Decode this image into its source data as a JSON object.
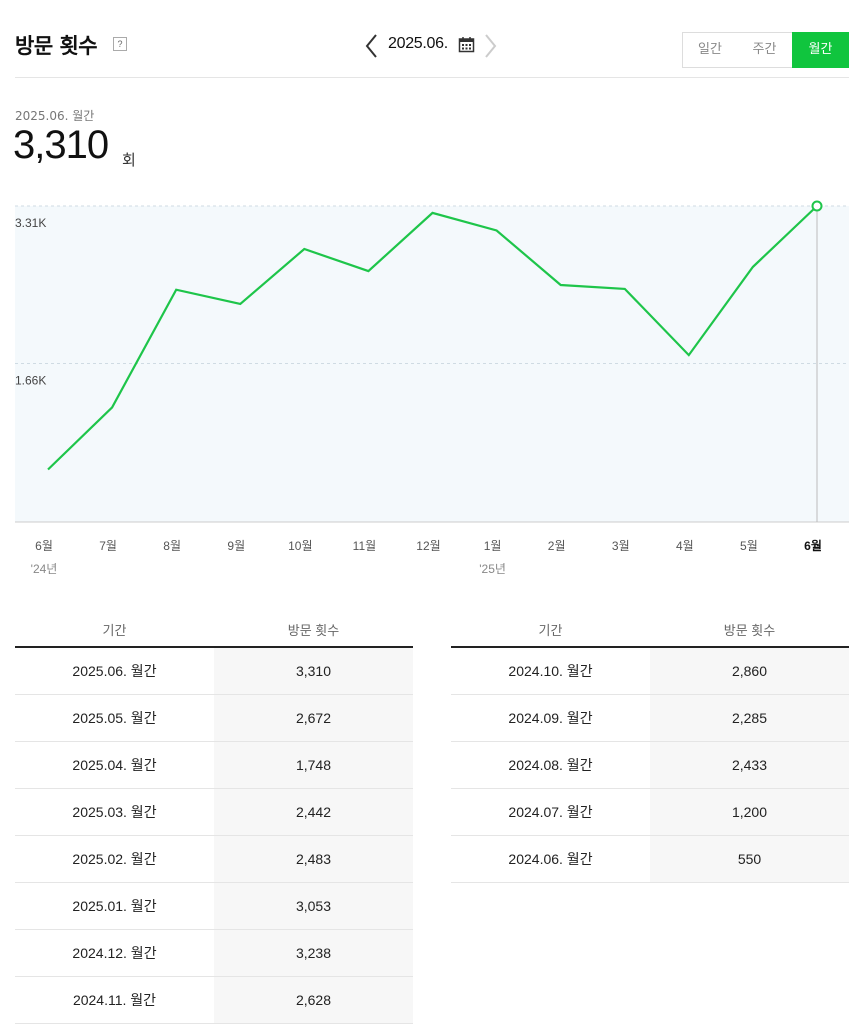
{
  "header": {
    "title": "방문 횟수",
    "help": "?",
    "period": "2025.06.",
    "tabs": {
      "daily": "일간",
      "weekly": "주간",
      "monthly": "월간"
    }
  },
  "summary": {
    "label": "2025.06. 월간",
    "value": "3,310",
    "unit": "회"
  },
  "colors": {
    "accent": "#10c53e",
    "line": "#1ec54a",
    "plot_bg": "#f4f9fc"
  },
  "chart_data": {
    "type": "line",
    "categories": [
      "6월",
      "7월",
      "8월",
      "9월",
      "10월",
      "11월",
      "12월",
      "1월",
      "2월",
      "3월",
      "4월",
      "5월",
      "6월"
    ],
    "year_labels": [
      "'24년",
      "",
      "",
      "",
      "",
      "",
      "",
      "'25년",
      "",
      "",
      "",
      "",
      ""
    ],
    "values": [
      550,
      1200,
      2433,
      2285,
      2860,
      2628,
      3238,
      3053,
      2483,
      2442,
      1748,
      2672,
      3310
    ],
    "ytick_labels": [
      "3.31K",
      "1.66K"
    ],
    "ytick_values": [
      3310,
      1660
    ],
    "ylim": [
      0,
      3310
    ],
    "grid": true,
    "highlight_index": 12
  },
  "table_headers": {
    "period": "기간",
    "visits": "방문 횟수"
  },
  "table_left": [
    {
      "period": "2025.06. 월간",
      "visits": "3,310"
    },
    {
      "period": "2025.05. 월간",
      "visits": "2,672"
    },
    {
      "period": "2025.04. 월간",
      "visits": "1,748"
    },
    {
      "period": "2025.03. 월간",
      "visits": "2,442"
    },
    {
      "period": "2025.02. 월간",
      "visits": "2,483"
    },
    {
      "period": "2025.01. 월간",
      "visits": "3,053"
    },
    {
      "period": "2024.12. 월간",
      "visits": "3,238"
    },
    {
      "period": "2024.11. 월간",
      "visits": "2,628"
    }
  ],
  "table_right": [
    {
      "period": "2024.10. 월간",
      "visits": "2,860"
    },
    {
      "period": "2024.09. 월간",
      "visits": "2,285"
    },
    {
      "period": "2024.08. 월간",
      "visits": "2,433"
    },
    {
      "period": "2024.07. 월간",
      "visits": "1,200"
    },
    {
      "period": "2024.06. 월간",
      "visits": "550"
    }
  ]
}
